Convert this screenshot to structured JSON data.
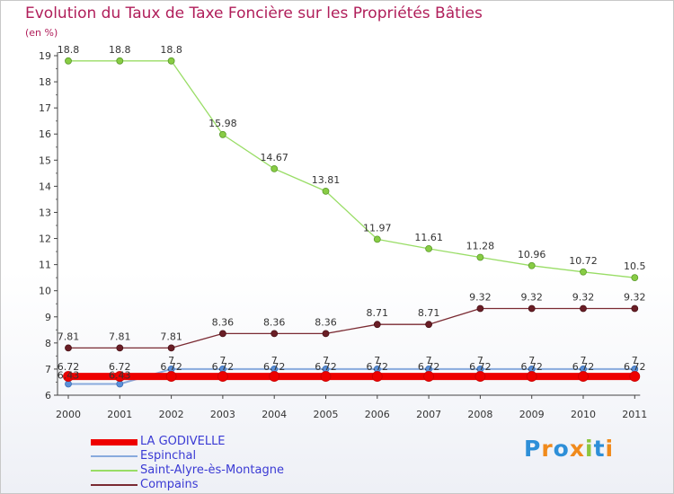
{
  "title": "Evolution du Taux de Taxe Foncière sur les Propriétés Bâties",
  "unit_label": "(en %)",
  "brand": "Proxiti",
  "colors": {
    "title": "#b01e5a",
    "legend_text": "#3a3ad4",
    "brand_letters": [
      "#2e8fd8",
      "#f08a1c",
      "#2e8fd8",
      "#f08a1c",
      "#8cc63f",
      "#2e8fd8",
      "#f08a1c"
    ]
  },
  "chart_data": {
    "type": "line",
    "title": "Evolution du Taux de Taxe Foncière sur les Propriétés Bâties",
    "ylabel": "(en %)",
    "xlabel": "",
    "ylim": [
      6,
      19
    ],
    "yticks": [
      6,
      7,
      8,
      9,
      10,
      11,
      12,
      13,
      14,
      15,
      16,
      17,
      18,
      19
    ],
    "grid": false,
    "legend_position": "bottom-left",
    "x": [
      "2000",
      "2001",
      "2002",
      "2003",
      "2004",
      "2005",
      "2006",
      "2007",
      "2008",
      "2009",
      "2010",
      "2011"
    ],
    "series": [
      {
        "name": "LA GODIVELLE",
        "color": "#ee0000",
        "values": [
          6.72,
          6.72,
          6.72,
          6.72,
          6.72,
          6.72,
          6.72,
          6.72,
          6.72,
          6.72,
          6.72,
          6.72
        ],
        "labels": [
          "6.72",
          "6.72",
          "6.72",
          "6.72",
          "6.72",
          "6.72",
          "6.72",
          "6.72",
          "6.72",
          "6.72",
          "6.72",
          "6.72"
        ]
      },
      {
        "name": "Espinchal",
        "color": "#88aadd",
        "values": [
          6.43,
          6.43,
          7,
          7,
          7,
          7,
          7,
          7,
          7,
          7,
          7,
          7
        ],
        "labels": [
          "6.43",
          "6.43",
          "7",
          "7",
          "7",
          "7",
          "7",
          "7",
          "7",
          "7",
          "7",
          "7"
        ]
      },
      {
        "name": "Saint-Alyre-ès-Montagne",
        "color": "#99dd66",
        "values": [
          18.8,
          18.8,
          18.8,
          15.98,
          14.67,
          13.81,
          11.97,
          11.61,
          11.28,
          10.96,
          10.72,
          10.5
        ],
        "labels": [
          "18.8",
          "18.8",
          "18.8",
          "15.98",
          "14.67",
          "13.81",
          "11.97",
          "11.61",
          "11.28",
          "10.96",
          "10.72",
          "10.5"
        ]
      },
      {
        "name": "Compains",
        "color": "#7a2a32",
        "values": [
          7.81,
          7.81,
          7.81,
          8.36,
          8.36,
          8.36,
          8.71,
          8.71,
          9.32,
          9.32,
          9.32,
          9.32
        ],
        "labels": [
          "7.81",
          "7.81",
          "7.81",
          "8.36",
          "8.36",
          "8.36",
          "8.71",
          "8.71",
          "9.32",
          "9.32",
          "9.32",
          "9.32"
        ]
      }
    ]
  }
}
